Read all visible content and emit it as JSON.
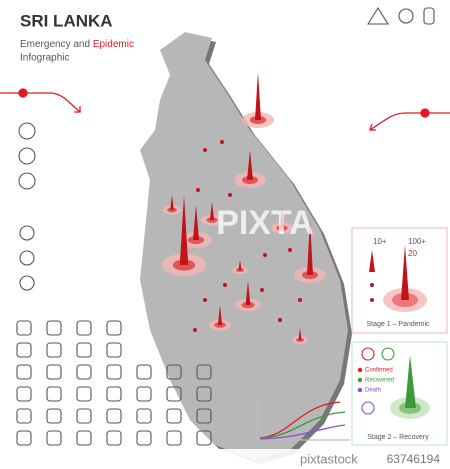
{
  "header": {
    "title": "SRI LANKA",
    "subtitle": "Emergency and",
    "subtitle_highlight": "Epidemic",
    "subtitle_line2": "Infographic"
  },
  "stage1": {
    "label_small": "10+",
    "label_large": "100+",
    "count": "20",
    "caption": "Stage 1 – Pandemic"
  },
  "stage2": {
    "legend": [
      "Confirmed",
      "Recovered",
      "Death"
    ],
    "caption": "Stage 2 – Recovery"
  },
  "watermark": {
    "brand": "PIXTA",
    "site": "pixtastock",
    "id": "63746194"
  }
}
